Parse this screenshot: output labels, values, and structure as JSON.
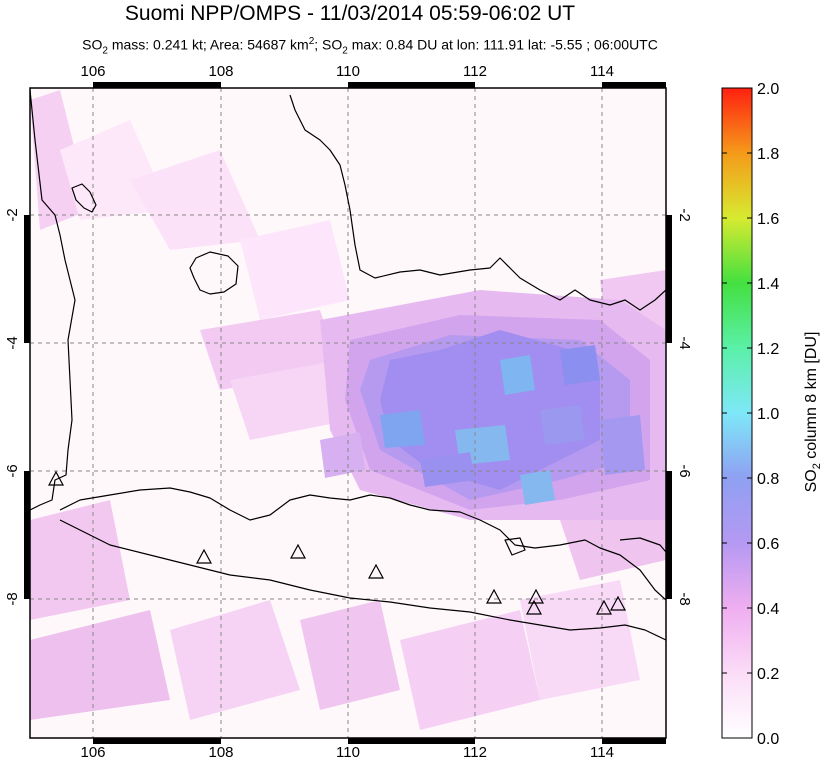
{
  "header": {
    "title": "Suomi NPP/OMPS - 11/03/2014 05:59-06:02 UT",
    "subtitle_parts": {
      "mass_prefix": "SO",
      "mass_sub": "2",
      "mass_text": " mass: 0.241 kt; Area: 54687 km",
      "area_sup": "2",
      "max_prefix": "; SO",
      "max_sub": "2",
      "max_text": " max: 0.84 DU at lon: 111.91 lat: -5.55 ; 06:00UTC"
    }
  },
  "map": {
    "lon_range": [
      105,
      115
    ],
    "lat_range": [
      -10.2,
      -0.2
    ],
    "lon_ticks": [
      "106",
      "108",
      "110",
      "112",
      "114"
    ],
    "lat_ticks": [
      "-2",
      "-4",
      "-6",
      "-8"
    ],
    "colors": {
      "land_outline": "#000000",
      "grid": "#888888",
      "frame": "#000000"
    }
  },
  "colorbar": {
    "label_prefix": "SO",
    "label_sub": "2",
    "label_suffix": " column 8 km [DU]",
    "range": [
      0.0,
      2.0
    ],
    "tick_labels": [
      "0.0",
      "0.2",
      "0.4",
      "0.6",
      "0.8",
      "1.0",
      "1.2",
      "1.4",
      "1.6",
      "1.8",
      "2.0"
    ]
  }
}
